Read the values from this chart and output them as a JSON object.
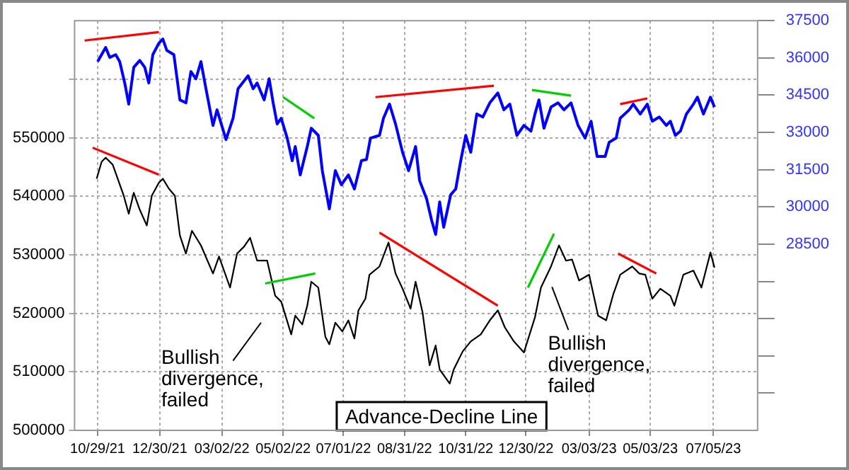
{
  "chart_data": {
    "type": "line",
    "annotations": [
      "Bullish divergence, failed",
      "Bullish divergence, failed",
      "Advance-Decline Line"
    ],
    "xlim": [
      "2021-10-06",
      "2023-08-18"
    ],
    "xticks": [
      {
        "value": "2021-10-29",
        "label": "10/29/21"
      },
      {
        "value": "2021-12-30",
        "label": "12/30/21"
      },
      {
        "value": "2022-03-02",
        "label": "03/02/22"
      },
      {
        "value": "2022-05-02",
        "label": "05/02/22"
      },
      {
        "value": "2022-07-01",
        "label": "07/01/22"
      },
      {
        "value": "2022-08-31",
        "label": "08/31/22"
      },
      {
        "value": "2022-10-31",
        "label": "10/31/22"
      },
      {
        "value": "2022-12-30",
        "label": "12/30/22"
      },
      {
        "value": "2023-03-03",
        "label": "03/03/23"
      },
      {
        "value": "2023-05-03",
        "label": "05/03/23"
      },
      {
        "value": "2023-07-05",
        "label": "07/05/23"
      }
    ],
    "ylim": [
      500000,
      570000
    ],
    "yticks": [
      500000,
      510000,
      520000,
      530000,
      540000,
      550000,
      {
        "value": 560000,
        "label": null
      }
    ],
    "y2lim": [
      21000,
      37500
    ],
    "y2ticks": [
      {
        "value": 22500,
        "label": null
      },
      {
        "value": 24000,
        "label": null
      },
      {
        "value": 25500,
        "label": null
      },
      {
        "value": 27000,
        "label": null
      },
      28500,
      30000,
      31500,
      33000,
      34500,
      36000,
      37500
    ],
    "grid": true,
    "series": [
      {
        "color": "#0000ff",
        "axis": "y2",
        "x": [
          "2021-10-29",
          "2021-11-06",
          "2021-11-10",
          "2021-11-16",
          "2021-11-20",
          "2021-11-25",
          "2021-11-29",
          "2021-12-04",
          "2021-12-10",
          "2021-12-15",
          "2021-12-19",
          "2021-12-23",
          "2021-12-29",
          "2022-01-02",
          "2022-01-06",
          "2022-01-13",
          "2022-01-19",
          "2022-01-25",
          "2022-01-30",
          "2022-02-04",
          "2022-02-09",
          "2022-02-14",
          "2022-02-21",
          "2022-02-25",
          "2022-03-06",
          "2022-03-13",
          "2022-03-18",
          "2022-03-28",
          "2022-04-02",
          "2022-04-06",
          "2022-04-13",
          "2022-04-18",
          "2022-04-22",
          "2022-04-26",
          "2022-04-30",
          "2022-05-06",
          "2022-05-11",
          "2022-05-14",
          "2022-05-19",
          "2022-05-26",
          "2022-05-30",
          "2022-06-06",
          "2022-06-10",
          "2022-06-17",
          "2022-06-23",
          "2022-06-29",
          "2022-07-06",
          "2022-07-12",
          "2022-07-19",
          "2022-07-24",
          "2022-07-28",
          "2022-08-06",
          "2022-08-10",
          "2022-08-16",
          "2022-08-22",
          "2022-08-29",
          "2022-09-04",
          "2022-09-11",
          "2022-09-15",
          "2022-09-22",
          "2022-09-27",
          "2022-10-01",
          "2022-10-05",
          "2022-10-09",
          "2022-10-16",
          "2022-10-21",
          "2022-10-26",
          "2022-10-31",
          "2022-11-05",
          "2022-11-11",
          "2022-11-17",
          "2022-11-24",
          "2022-12-02",
          "2022-12-08",
          "2022-12-14",
          "2022-12-21",
          "2022-12-28",
          "2023-01-04",
          "2023-01-08",
          "2023-01-12",
          "2023-01-17",
          "2023-01-24",
          "2023-01-31",
          "2023-02-06",
          "2023-02-13",
          "2023-02-20",
          "2023-02-27",
          "2023-03-05",
          "2023-03-11",
          "2023-03-19",
          "2023-03-23",
          "2023-03-30",
          "2023-04-03",
          "2023-04-12",
          "2023-04-16",
          "2023-04-23",
          "2023-04-30",
          "2023-05-05",
          "2023-05-12",
          "2023-05-19",
          "2023-05-23",
          "2023-05-28",
          "2023-06-02",
          "2023-06-08",
          "2023-06-15",
          "2023-06-19",
          "2023-06-25",
          "2023-07-02",
          "2023-07-06"
        ],
        "values": [
          35850,
          36420,
          36020,
          36130,
          35850,
          34990,
          34140,
          35620,
          35900,
          35620,
          34990,
          36130,
          36590,
          36760,
          36300,
          36130,
          34310,
          34190,
          35450,
          35160,
          35850,
          34760,
          33280,
          33910,
          32710,
          33570,
          34760,
          35280,
          34760,
          34990,
          34310,
          35160,
          34190,
          33340,
          33570,
          32770,
          31860,
          32430,
          31290,
          32430,
          33170,
          32880,
          31460,
          29920,
          31460,
          30890,
          31290,
          30720,
          31860,
          31910,
          32770,
          32880,
          33570,
          34140,
          33340,
          32200,
          31460,
          32430,
          31060,
          30320,
          29460,
          28890,
          30200,
          29180,
          30490,
          30720,
          31860,
          32880,
          32200,
          33740,
          33620,
          34190,
          34590,
          33910,
          34140,
          32880,
          33280,
          33050,
          33740,
          34310,
          33170,
          34020,
          34190,
          33910,
          34190,
          33280,
          32770,
          33450,
          32030,
          32030,
          32600,
          32770,
          33570,
          33910,
          34140,
          33740,
          34140,
          33450,
          33620,
          33280,
          33450,
          32880,
          33050,
          33740,
          34140,
          34420,
          33740,
          34420,
          34020
        ]
      },
      {
        "color": "#000000",
        "x": [
          "2021-10-28",
          "2021-11-02",
          "2021-11-06",
          "2021-11-13",
          "2021-11-18",
          "2021-11-24",
          "2021-11-29",
          "2021-12-04",
          "2021-12-10",
          "2021-12-17",
          "2021-12-22",
          "2021-12-29",
          "2022-01-02",
          "2022-01-08",
          "2022-01-14",
          "2022-01-19",
          "2022-01-25",
          "2022-01-31",
          "2022-02-09",
          "2022-02-21",
          "2022-02-27",
          "2022-03-10",
          "2022-03-17",
          "2022-03-24",
          "2022-03-30",
          "2022-04-06",
          "2022-04-16",
          "2022-04-24",
          "2022-04-30",
          "2022-05-10",
          "2022-05-14",
          "2022-05-21",
          "2022-05-26",
          "2022-05-30",
          "2022-06-06",
          "2022-06-13",
          "2022-06-17",
          "2022-06-23",
          "2022-06-30",
          "2022-07-06",
          "2022-07-12",
          "2022-07-16",
          "2022-07-23",
          "2022-07-27",
          "2022-08-06",
          "2022-08-15",
          "2022-08-22",
          "2022-08-29",
          "2022-09-06",
          "2022-09-11",
          "2022-09-18",
          "2022-09-25",
          "2022-10-01",
          "2022-10-05",
          "2022-10-15",
          "2022-10-19",
          "2022-10-28",
          "2022-11-05",
          "2022-11-15",
          "2022-11-24",
          "2022-12-02",
          "2022-12-09",
          "2022-12-18",
          "2022-12-28",
          "2023-01-08",
          "2023-01-14",
          "2023-01-24",
          "2023-02-01",
          "2023-02-08",
          "2023-02-14",
          "2023-02-21",
          "2023-03-03",
          "2023-03-12",
          "2023-03-20",
          "2023-03-27",
          "2023-04-03",
          "2023-04-15",
          "2023-04-22",
          "2023-04-28",
          "2023-05-05",
          "2023-05-13",
          "2023-05-23",
          "2023-05-27",
          "2023-06-05",
          "2023-06-15",
          "2023-06-23",
          "2023-07-02",
          "2023-07-06"
        ],
        "values": [
          543000,
          545900,
          546600,
          545400,
          543000,
          540100,
          537000,
          540600,
          537700,
          535000,
          540100,
          542300,
          543000,
          541300,
          540100,
          533300,
          530200,
          534100,
          531600,
          526800,
          529700,
          524400,
          530200,
          531400,
          532900,
          529000,
          529000,
          523000,
          522000,
          516400,
          519600,
          518100,
          521300,
          525400,
          524400,
          516000,
          514700,
          518400,
          516900,
          518800,
          515700,
          520500,
          522500,
          526600,
          528000,
          532100,
          526800,
          524200,
          520800,
          525400,
          520100,
          511100,
          514500,
          510400,
          508000,
          510400,
          513500,
          515200,
          516400,
          518800,
          520500,
          517600,
          515200,
          513300,
          519300,
          524400,
          528000,
          531600,
          529000,
          529200,
          525600,
          526600,
          519600,
          518800,
          523200,
          526600,
          528000,
          526800,
          526600,
          522500,
          524200,
          523000,
          521300,
          526600,
          527300,
          524400,
          530400,
          527800
        ]
      },
      {
        "type": "line",
        "color": "#ff0000",
        "axis": "y2",
        "x": [
          "2021-10-16",
          "2021-12-29"
        ],
        "values": [
          36700,
          37040
        ]
      },
      {
        "type": "line",
        "color": "#00cc00",
        "axis": "y2",
        "x": [
          "2022-05-02",
          "2022-06-02"
        ],
        "values": [
          34420,
          33570
        ]
      },
      {
        "type": "line",
        "color": "#ff0000",
        "axis": "y2",
        "x": [
          "2022-08-02",
          "2022-11-28"
        ],
        "values": [
          34420,
          34880
        ]
      },
      {
        "type": "line",
        "color": "#00cc00",
        "axis": "y2",
        "x": [
          "2023-01-05",
          "2023-02-13"
        ],
        "values": [
          34710,
          34480
        ]
      },
      {
        "type": "line",
        "color": "#ff0000",
        "axis": "y2",
        "x": [
          "2023-04-03",
          "2023-04-30"
        ],
        "values": [
          34140,
          34370
        ]
      },
      {
        "type": "line",
        "color": "#ff0000",
        "x": [
          "2021-10-24",
          "2021-12-29"
        ],
        "values": [
          548300,
          543700
        ]
      },
      {
        "type": "line",
        "color": "#00cc00",
        "x": [
          "2022-04-14",
          "2022-06-03"
        ],
        "values": [
          525100,
          526800
        ]
      },
      {
        "type": "line",
        "color": "#ff0000",
        "x": [
          "2022-08-06",
          "2022-12-02"
        ],
        "values": [
          533800,
          521300
        ]
      },
      {
        "type": "line",
        "color": "#00cc00",
        "x": [
          "2023-01-01",
          "2023-01-27"
        ],
        "values": [
          524400,
          533600
        ]
      },
      {
        "type": "line",
        "color": "#ff0000",
        "x": [
          "2023-04-01",
          "2023-05-09"
        ],
        "values": [
          530200,
          526800
        ]
      }
    ]
  }
}
